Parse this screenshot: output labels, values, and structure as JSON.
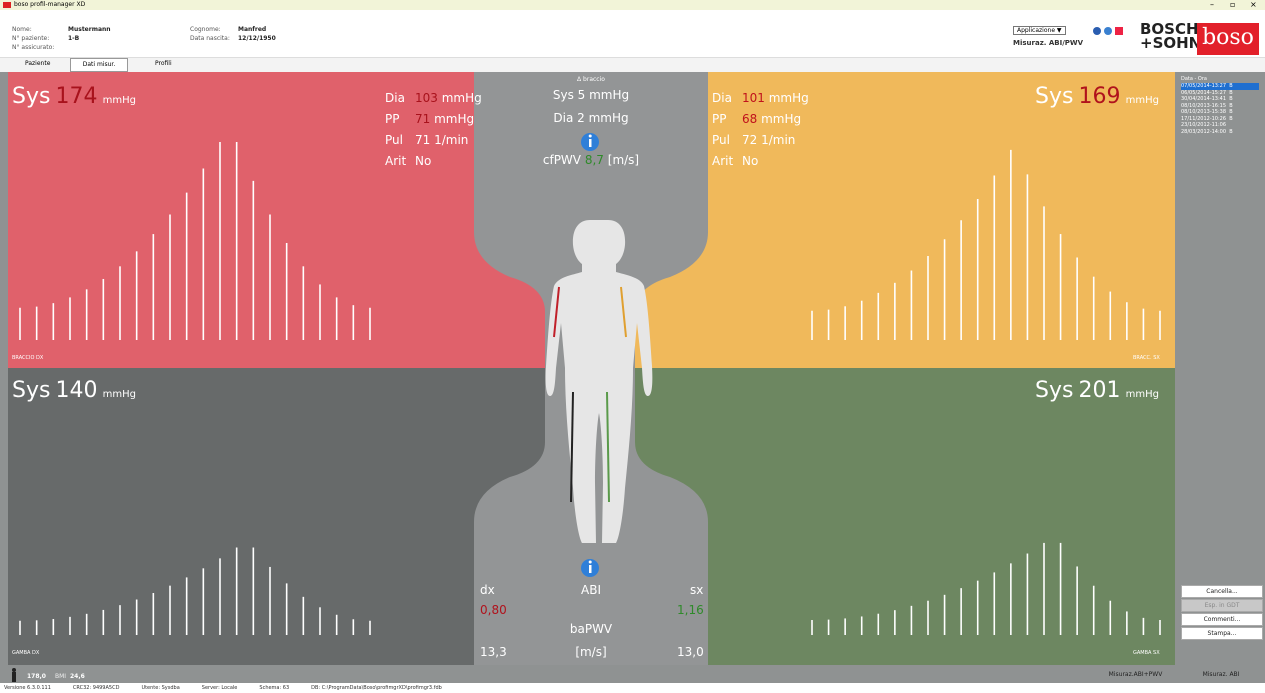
{
  "titlebar": {
    "app": "boso profil-manager XD",
    "controls": [
      "–",
      "▫",
      "×"
    ]
  },
  "patient": {
    "name_label": "Nome:",
    "name": "Mustermann",
    "id_label": "N° paziente:",
    "id": "1-B",
    "insurance_label": "N° assicurato:",
    "surname_label": "Cognome:",
    "surname": "Manfred",
    "birth_label": "Data nascita:",
    "birth": "12/12/1950"
  },
  "header_right": {
    "menu": "Applicazione ▼",
    "mode": "Misuraz. ABI/PWV",
    "logo_lines": [
      "BOSCH",
      "+SOHN"
    ],
    "logo_box": "boso"
  },
  "tabs": [
    "Paziente",
    "Dati misur.",
    "Profili"
  ],
  "arm_right": {
    "sys_label": "Sys",
    "sys": "174",
    "unit": "mmHg",
    "rows": [
      {
        "label": "Dia",
        "value": "103",
        "unit": "mmHg"
      },
      {
        "label": "PP",
        "value": "71",
        "unit": "mmHg"
      },
      {
        "label": "Pul",
        "value": "71",
        "unit": "1/min"
      },
      {
        "label": "Arit",
        "value": "No"
      }
    ],
    "caption": "BRACCIO DX"
  },
  "arm_left": {
    "sys_label": "Sys",
    "sys": "169",
    "unit": "mmHg",
    "rows": [
      {
        "label": "Dia",
        "value": "101",
        "unit": "mmHg"
      },
      {
        "label": "PP",
        "value": "68",
        "unit": "mmHg"
      },
      {
        "label": "Pul",
        "value": "72",
        "unit": "1/min"
      },
      {
        "label": "Arit",
        "value": "No"
      }
    ],
    "caption": "BRACC. SX"
  },
  "leg_right": {
    "sys_label": "Sys",
    "sys": "140",
    "unit": "mmHg",
    "caption": "GAMBA DX"
  },
  "leg_left": {
    "sys_label": "Sys",
    "sys": "201",
    "unit": "mmHg",
    "caption": "GAMBA SX"
  },
  "center_top": {
    "delta": "Δ braccio",
    "sys": "Sys 5 mmHg",
    "dia": "Dia 2 mmHg",
    "cfpwv_label": "cfPWV",
    "cfpwv": "8,7",
    "cfpwv_unit": "[m/s]"
  },
  "center_bottom": {
    "dx": "dx",
    "abi": "ABI",
    "sx": "sx",
    "abi_dx": "0,80",
    "abi_sx": "1,16",
    "bapwv": "baPWV",
    "unit": "[m/s]",
    "bapwv_dx": "13,3",
    "bapwv_sx": "13,0"
  },
  "sidebar": {
    "header": "Data - Ora",
    "dates": [
      "07/05/2014-13:27  B",
      "06/05/2014-15:27  B",
      "30/04/2014-13:41  B",
      "08/10/2013-16:15  B",
      "08/10/2013-15:38  B",
      "17/11/2012-10:26  B",
      "23/10/2012-11:06",
      "28/03/2012-14:00  B"
    ],
    "buttons": [
      "Cancella...",
      "Esp. in GDT",
      "Commenti...",
      "Stampa..."
    ]
  },
  "bottom": {
    "height": "178,0",
    "bmi_label": "BMI",
    "bmi": "24,6",
    "buttons": [
      "Misuraz.ABI+PWV",
      "Misuraz. ABI"
    ]
  },
  "status": [
    "Versione 6.3.0.111",
    "CRC32: 9499A5CD",
    "Utente: Sysdba",
    "Server: Locale",
    "Schema: 63",
    "DB: C:\\ProgramData\\Boso\\profimgrXD\\profimgr3.fdb"
  ]
}
